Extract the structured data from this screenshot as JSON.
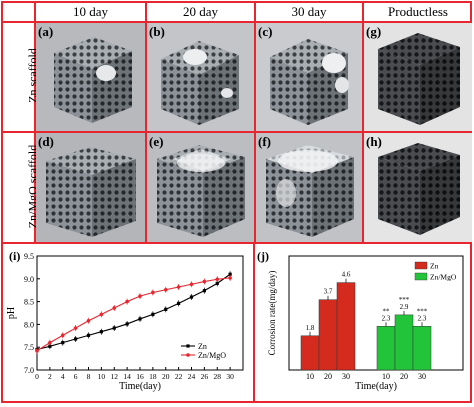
{
  "columns": [
    "10 day",
    "20 day",
    "30 day",
    "Productless"
  ],
  "rows": [
    "Zn scaffold",
    "Zn/MgO scaffold"
  ],
  "panels": {
    "a": "(a)",
    "b": "(b)",
    "c": "(c)",
    "g": "(g)",
    "d": "(d)",
    "e": "(e)",
    "f": "(f)",
    "h": "(h)"
  },
  "chart_data": [
    {
      "type": "line",
      "label": "(i)",
      "xlabel": "Time(day)",
      "ylabel": "pH",
      "xlim": [
        0,
        32
      ],
      "ylim": [
        7.0,
        9.5
      ],
      "xticks": [
        0,
        2,
        4,
        6,
        8,
        10,
        12,
        14,
        16,
        18,
        20,
        22,
        24,
        26,
        28,
        30
      ],
      "yticks": [
        7.0,
        7.5,
        8.0,
        8.5,
        9.0,
        9.5
      ],
      "x": [
        0,
        2,
        4,
        6,
        8,
        10,
        12,
        14,
        16,
        18,
        20,
        22,
        24,
        26,
        28,
        30
      ],
      "series": [
        {
          "name": "Zn",
          "color": "#000000",
          "marker": "square",
          "values": [
            7.45,
            7.52,
            7.6,
            7.68,
            7.76,
            7.84,
            7.92,
            8.01,
            8.12,
            8.22,
            8.33,
            8.46,
            8.6,
            8.74,
            8.9,
            9.1
          ]
        },
        {
          "name": "Zn/MgO",
          "color": "#e8262f",
          "marker": "circle",
          "values": [
            7.42,
            7.6,
            7.76,
            7.92,
            8.08,
            8.22,
            8.36,
            8.5,
            8.62,
            8.7,
            8.76,
            8.82,
            8.88,
            8.94,
            8.99,
            9.02
          ]
        }
      ],
      "legend_position": "bottom-right"
    },
    {
      "type": "bar",
      "label": "(j)",
      "xlabel": "Time(day)",
      "ylabel": "Corrosion rate(mg/day)",
      "ylim": [
        0,
        6
      ],
      "groups": [
        {
          "name": "Zn",
          "color": "#d52b1e",
          "categories": [
            "10",
            "20",
            "30"
          ],
          "values": [
            1.8,
            3.7,
            4.6
          ],
          "labels": [
            "1.8",
            "3.7",
            "4.6"
          ],
          "significance": [
            "",
            "",
            ""
          ]
        },
        {
          "name": "Zn/MgO",
          "color": "#22c53a",
          "categories": [
            "10",
            "20",
            "30"
          ],
          "values": [
            2.3,
            2.9,
            2.3
          ],
          "labels": [
            "2.3",
            "2.9",
            "2.3"
          ],
          "significance": [
            "**",
            "***",
            "***"
          ]
        }
      ],
      "legend_position": "top-right"
    }
  ]
}
